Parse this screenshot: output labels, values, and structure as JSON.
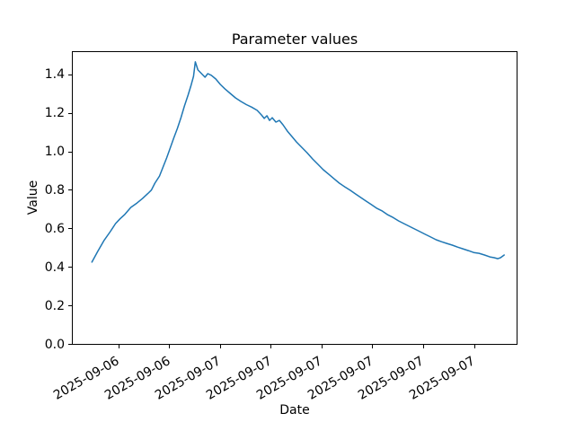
{
  "window": {
    "background": "#ffffff"
  },
  "chart_data": {
    "type": "line",
    "title": "Parameter values",
    "xlabel": "Date",
    "ylabel": "Value",
    "line_color": "#1f77b4",
    "axis_color": "#000000",
    "grid": false,
    "legend": false,
    "x_axis_encoding": "hours since 2025-09-06 00:00 (estimated from tick spacing)",
    "xlim": [
      12.3,
      47.4
    ],
    "ylim": [
      0.0,
      1.52
    ],
    "yticks": {
      "values": [
        0.0,
        0.2,
        0.4,
        0.6,
        0.8,
        1.0,
        1.2,
        1.4
      ],
      "labels": [
        "0.0",
        "0.2",
        "0.4",
        "0.6",
        "0.8",
        "1.0",
        "1.2",
        "1.4"
      ]
    },
    "xticks": {
      "values": [
        16,
        20,
        24,
        28,
        32,
        36,
        40,
        44
      ],
      "labels": [
        "2025-09-06",
        "2025-09-06",
        "2025-09-07",
        "2025-09-07",
        "2025-09-07",
        "2025-09-07",
        "2025-09-07",
        "2025-09-07"
      ],
      "rotation_deg": 30
    },
    "series": [
      {
        "name": "Parameter",
        "x": [
          13.88,
          14.33,
          14.82,
          15.32,
          15.74,
          16.09,
          16.44,
          16.94,
          17.43,
          17.86,
          18.28,
          18.56,
          18.84,
          19.2,
          19.48,
          19.76,
          20.04,
          20.32,
          20.61,
          20.89,
          21.17,
          21.45,
          21.67,
          21.88,
          22.02,
          22.23,
          22.51,
          22.79,
          23.01,
          23.29,
          23.64,
          23.99,
          24.35,
          24.77,
          25.19,
          25.62,
          26.04,
          26.46,
          26.89,
          27.24,
          27.45,
          27.66,
          27.87,
          28.08,
          28.37,
          28.65,
          28.93,
          29.28,
          29.64,
          29.99,
          30.41,
          30.83,
          31.26,
          31.68,
          32.1,
          32.53,
          32.95,
          33.37,
          33.8,
          34.22,
          34.64,
          35.07,
          35.49,
          35.91,
          36.33,
          36.76,
          37.18,
          37.6,
          38.03,
          38.45,
          38.87,
          39.3,
          39.72,
          40.14,
          40.57,
          40.99,
          41.41,
          41.83,
          42.26,
          42.68,
          43.1,
          43.53,
          43.95,
          44.37,
          44.8,
          45.22,
          45.57,
          45.85,
          46.06,
          46.35
        ],
        "y": [
          0.427,
          0.482,
          0.538,
          0.585,
          0.627,
          0.652,
          0.673,
          0.711,
          0.734,
          0.757,
          0.783,
          0.801,
          0.837,
          0.874,
          0.921,
          0.967,
          1.019,
          1.07,
          1.121,
          1.177,
          1.238,
          1.294,
          1.341,
          1.392,
          1.467,
          1.425,
          1.406,
          1.387,
          1.406,
          1.397,
          1.378,
          1.35,
          1.327,
          1.303,
          1.28,
          1.261,
          1.245,
          1.232,
          1.215,
          1.191,
          1.173,
          1.187,
          1.163,
          1.177,
          1.154,
          1.163,
          1.14,
          1.107,
          1.079,
          1.051,
          1.023,
          0.995,
          0.963,
          0.935,
          0.907,
          0.883,
          0.86,
          0.837,
          0.818,
          0.8,
          0.781,
          0.762,
          0.743,
          0.725,
          0.706,
          0.692,
          0.673,
          0.659,
          0.641,
          0.627,
          0.613,
          0.599,
          0.585,
          0.571,
          0.557,
          0.543,
          0.533,
          0.524,
          0.515,
          0.505,
          0.496,
          0.487,
          0.477,
          0.473,
          0.464,
          0.454,
          0.45,
          0.445,
          0.45,
          0.464
        ]
      }
    ]
  }
}
